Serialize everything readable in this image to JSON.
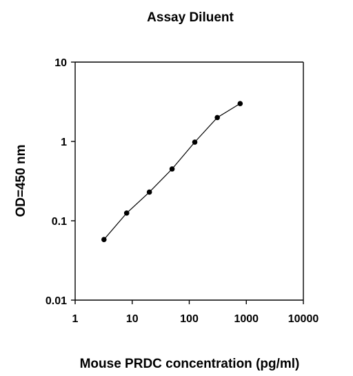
{
  "chart_data": {
    "type": "scatter",
    "title": "Assay Diluent",
    "xlabel": "Mouse PRDC concentration (pg/ml)",
    "ylabel": "OD=450 nm",
    "x_scale": "log",
    "y_scale": "log",
    "xlim": [
      1,
      10000
    ],
    "ylim": [
      0.01,
      10
    ],
    "x_ticks": [
      "1",
      "10",
      "100",
      "1000",
      "10000"
    ],
    "y_ticks": [
      "10",
      "1",
      "0.1",
      "0.01"
    ],
    "grid": false,
    "line_connected": true,
    "colors": {
      "line": "#000000",
      "marker": "#000000",
      "axis": "#000000"
    },
    "series": [
      {
        "x": [
          3.2,
          8,
          20,
          50,
          125,
          310,
          780
        ],
        "y": [
          0.058,
          0.125,
          0.23,
          0.45,
          0.98,
          2.0,
          3.0
        ]
      }
    ]
  }
}
